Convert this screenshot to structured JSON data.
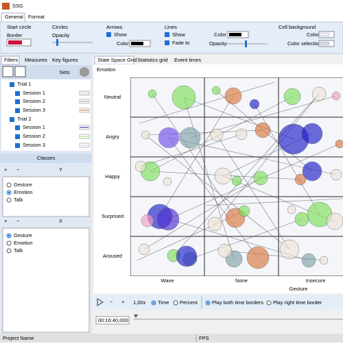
{
  "window": {
    "title": "SSG"
  },
  "ribbon": {
    "tabs": [
      "General",
      "Format"
    ],
    "start_circle": {
      "title": "Start circle",
      "border": "Border"
    },
    "circles": {
      "title": "Circles",
      "opacity": "Opacity"
    },
    "arrows": {
      "title": "Arrows",
      "show": "Show",
      "color": "Color"
    },
    "lines": {
      "title": "Lines",
      "show": "Show",
      "fade_to": "Fade to",
      "color": "Color",
      "opacity": "Opacity"
    },
    "cell_background": {
      "title": "Cell background",
      "color": "Color",
      "color_selection": "Color selection"
    }
  },
  "left_panel": {
    "tabs": [
      "Filters",
      "Measures",
      "Key figures"
    ],
    "sets": "Sets",
    "tree": [
      {
        "label": "Trial 1",
        "children": [
          "Session 1",
          "Session 2",
          "Session 3"
        ]
      },
      {
        "label": "Trial 2",
        "children": [
          "Session 1",
          "Session 2",
          "Session 3"
        ]
      }
    ],
    "classes": "Classes",
    "y": {
      "label": "Y",
      "options": [
        "Gesture",
        "Emotion",
        "Talk"
      ]
    },
    "x": {
      "label": "X",
      "options": [
        "Gesture",
        "Emotion",
        "Talk"
      ]
    }
  },
  "main": {
    "tabs": [
      "State Space Grid",
      "Statistics grid",
      "Event times"
    ],
    "grid": {
      "y_title": "Emotion",
      "rows": [
        "Neutral",
        "Angry",
        "Happy",
        "Surprised",
        "Aroused"
      ],
      "columns": [
        "Wave",
        "None",
        "Insecure"
      ],
      "x_title": "Gesture"
    },
    "toolbar": {
      "speed": "1,00x",
      "time": "Time",
      "percent": "Percent",
      "play_both": "Play both time borders",
      "play_right": "Play right time border"
    },
    "timeline": {
      "position": "00:16:40,000"
    }
  },
  "status": {
    "project": "Project Name",
    "fps": "FPS"
  }
}
